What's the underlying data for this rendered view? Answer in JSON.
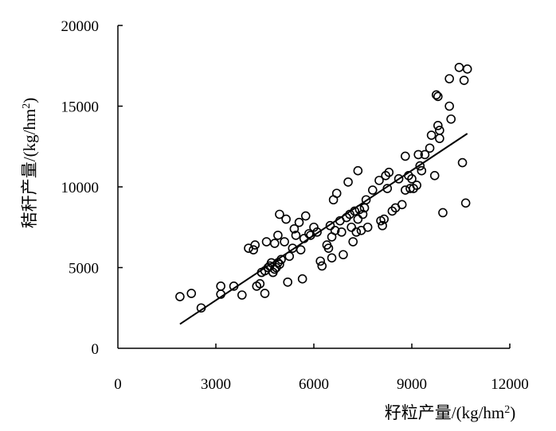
{
  "chart_data": {
    "type": "scatter",
    "xlabel": "籽粒产量/(kg/hm",
    "ylabel": "秸秆产量/(kg/hm",
    "label_superscript": "2",
    "label_close": ")",
    "xlim": [
      0,
      12000
    ],
    "ylim": [
      0,
      20000
    ],
    "x_ticks": [
      0,
      3000,
      6000,
      9000,
      12000
    ],
    "y_ticks": [
      0,
      5000,
      10000,
      15000,
      20000
    ],
    "x_tick_labels": [
      "0",
      "3000",
      "6000",
      "9000",
      "12000"
    ],
    "y_tick_labels": [
      "0",
      "5000",
      "10000",
      "15000",
      "20000"
    ],
    "grid": false,
    "marker": "open-circle",
    "trendline": {
      "x": [
        1900,
        10700
      ],
      "y": [
        1500,
        13300
      ]
    },
    "points": [
      [
        1900,
        3200
      ],
      [
        2250,
        3400
      ],
      [
        2550,
        2500
      ],
      [
        3150,
        3850
      ],
      [
        3150,
        3350
      ],
      [
        3550,
        3850
      ],
      [
        3800,
        3300
      ],
      [
        4000,
        6200
      ],
      [
        4150,
        6100
      ],
      [
        4200,
        6400
      ],
      [
        4250,
        3850
      ],
      [
        4350,
        4000
      ],
      [
        4400,
        4700
      ],
      [
        4500,
        3400
      ],
      [
        4550,
        6600
      ],
      [
        4500,
        4800
      ],
      [
        4600,
        5000
      ],
      [
        4650,
        5100
      ],
      [
        4700,
        5300
      ],
      [
        4750,
        4700
      ],
      [
        4800,
        4900
      ],
      [
        4850,
        5000
      ],
      [
        4900,
        5300
      ],
      [
        4950,
        5200
      ],
      [
        4800,
        6500
      ],
      [
        4900,
        7000
      ],
      [
        4950,
        8300
      ],
      [
        5000,
        5500
      ],
      [
        5100,
        6600
      ],
      [
        5150,
        8000
      ],
      [
        5200,
        4100
      ],
      [
        5250,
        5700
      ],
      [
        5350,
        6200
      ],
      [
        5400,
        7400
      ],
      [
        5450,
        7000
      ],
      [
        5550,
        7800
      ],
      [
        5600,
        6100
      ],
      [
        5650,
        4300
      ],
      [
        5700,
        6800
      ],
      [
        5750,
        8200
      ],
      [
        5850,
        7100
      ],
      [
        5900,
        7000
      ],
      [
        6000,
        7500
      ],
      [
        6100,
        7200
      ],
      [
        6200,
        5400
      ],
      [
        6250,
        5100
      ],
      [
        6400,
        6400
      ],
      [
        6450,
        6200
      ],
      [
        6500,
        7600
      ],
      [
        6550,
        6900
      ],
      [
        6550,
        5600
      ],
      [
        6600,
        9200
      ],
      [
        6650,
        7300
      ],
      [
        6700,
        9600
      ],
      [
        6800,
        7900
      ],
      [
        6850,
        7200
      ],
      [
        6900,
        5800
      ],
      [
        7000,
        8100
      ],
      [
        7050,
        10300
      ],
      [
        7100,
        8300
      ],
      [
        7150,
        7500
      ],
      [
        7200,
        6600
      ],
      [
        7250,
        8500
      ],
      [
        7300,
        7200
      ],
      [
        7350,
        8000
      ],
      [
        7350,
        11000
      ],
      [
        7400,
        8600
      ],
      [
        7450,
        7300
      ],
      [
        7500,
        8300
      ],
      [
        7550,
        8700
      ],
      [
        7600,
        9200
      ],
      [
        7650,
        7500
      ],
      [
        7800,
        9800
      ],
      [
        8000,
        10400
      ],
      [
        8050,
        7900
      ],
      [
        8100,
        7600
      ],
      [
        8150,
        8000
      ],
      [
        8200,
        10700
      ],
      [
        8250,
        9900
      ],
      [
        8300,
        10900
      ],
      [
        8400,
        8500
      ],
      [
        8500,
        8700
      ],
      [
        8600,
        10500
      ],
      [
        8700,
        8900
      ],
      [
        8800,
        11900
      ],
      [
        8800,
        9800
      ],
      [
        8900,
        10700
      ],
      [
        8950,
        9900
      ],
      [
        9000,
        10500
      ],
      [
        9050,
        9900
      ],
      [
        9150,
        10100
      ],
      [
        9200,
        12000
      ],
      [
        9250,
        11300
      ],
      [
        9300,
        11000
      ],
      [
        9400,
        12000
      ],
      [
        9550,
        12400
      ],
      [
        9600,
        13200
      ],
      [
        9700,
        10700
      ],
      [
        9750,
        15700
      ],
      [
        9800,
        13800
      ],
      [
        9800,
        15600
      ],
      [
        9850,
        13000
      ],
      [
        9850,
        13500
      ],
      [
        9950,
        8400
      ],
      [
        10150,
        16700
      ],
      [
        10150,
        15000
      ],
      [
        10200,
        14200
      ],
      [
        10450,
        17400
      ],
      [
        10550,
        11500
      ],
      [
        10600,
        16600
      ],
      [
        10650,
        9000
      ],
      [
        10700,
        17300
      ]
    ]
  }
}
